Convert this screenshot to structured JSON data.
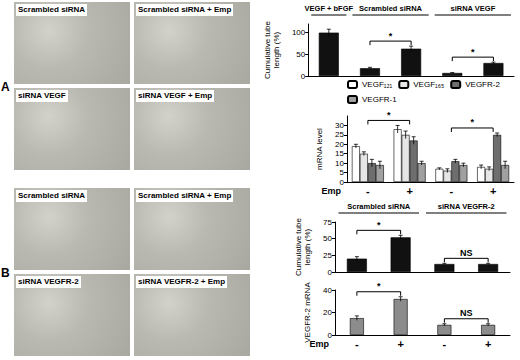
{
  "panels": [
    {
      "label": "A",
      "images": [
        "Scrambled siRNA",
        "Scrambled siRNA + Emp",
        "siRNA VEGF",
        "siRNA VEGF + Emp"
      ]
    },
    {
      "label": "B",
      "images": [
        "Scrambled siRNA",
        "Scrambled siRNA + Emp",
        "siRNA VEGFR-2",
        "siRNA VEGFR-2 + Emp"
      ]
    }
  ],
  "chart_data": [
    {
      "type": "bar",
      "y_label": "Cumulative tube length (%)",
      "categories": [
        null,
        null,
        null,
        null,
        null
      ],
      "values": [
        100,
        18,
        63,
        7,
        30
      ],
      "errors": [
        8,
        2,
        6,
        1,
        2
      ],
      "color": "#111111",
      "ylim": [
        0,
        120
      ],
      "yticks": [
        0,
        50,
        100
      ],
      "tick_labels": "y",
      "groups": [
        {
          "label": "VEGF + bFGF",
          "from": 0,
          "to": 0
        },
        {
          "label": "Scrambled siRNA",
          "from": 1,
          "to": 2
        },
        {
          "label": "siRNA VEGF",
          "from": 3,
          "to": 4
        }
      ],
      "significance": [
        {
          "label": "*",
          "from": 1,
          "to": 2
        },
        {
          "label": "*",
          "from": 3,
          "to": 4
        }
      ]
    },
    {
      "type": "bar",
      "y_label": "mRNA level",
      "x_label": "Emp",
      "categories": [
        "-",
        "+",
        "-",
        "+"
      ],
      "series": [
        {
          "name": "VEGF₁₂₁",
          "color": "#ffffff",
          "values": [
            19,
            28,
            7,
            8
          ],
          "errors": [
            1,
            2,
            0.5,
            1
          ]
        },
        {
          "name": "VEGF₁₆₅",
          "color": "#e6e6e6",
          "values": [
            15,
            25,
            6,
            7
          ],
          "errors": [
            1,
            2,
            1,
            1
          ]
        },
        {
          "name": "VEGFR-2",
          "color": "#6e6e6e",
          "values": [
            10,
            22,
            11,
            25
          ],
          "errors": [
            2,
            2,
            1,
            1
          ]
        },
        {
          "name": "VEGFR-1",
          "color": "#a0a0a0",
          "values": [
            9,
            10,
            9,
            9
          ],
          "errors": [
            2,
            1,
            1,
            2
          ]
        }
      ],
      "ylim": [
        0,
        35
      ],
      "yticks": [
        0,
        5,
        10,
        15,
        20,
        25,
        30
      ],
      "legend": "top",
      "significance": [
        {
          "label": "*",
          "from": 0,
          "to": 1
        },
        {
          "label": "*",
          "from": 2,
          "to": 3
        }
      ]
    },
    {
      "type": "bar",
      "y_label": "Cumulative tube length (%)",
      "categories": [
        null,
        null,
        null,
        null
      ],
      "values": [
        20,
        52,
        12,
        12
      ],
      "errors": [
        3,
        3,
        1,
        1
      ],
      "color": "#111111",
      "ylim": [
        0,
        75
      ],
      "yticks": [
        0,
        25,
        50,
        75
      ],
      "tick_labels": "y",
      "groups": [
        {
          "label": "Scrambled siRNA",
          "from": 0,
          "to": 1
        },
        {
          "label": "siRNA VEGFR-2",
          "from": 2,
          "to": 3
        }
      ],
      "significance": [
        {
          "label": "*",
          "from": 0,
          "to": 1
        },
        {
          "label": "NS",
          "from": 2,
          "to": 3
        }
      ]
    },
    {
      "type": "bar",
      "y_label": "VEGFR-2 mRNA",
      "x_label": "Emp",
      "categories": [
        "-",
        "+",
        "-",
        "+"
      ],
      "values": [
        15,
        32,
        9,
        9
      ],
      "errors": [
        2,
        2,
        1,
        1
      ],
      "color": "#8c8c8c",
      "ylim": [
        0,
        40
      ],
      "yticks": [
        0,
        20,
        40
      ],
      "significance": [
        {
          "label": "*",
          "from": 0,
          "to": 1
        },
        {
          "label": "NS",
          "from": 2,
          "to": 3
        }
      ]
    }
  ]
}
